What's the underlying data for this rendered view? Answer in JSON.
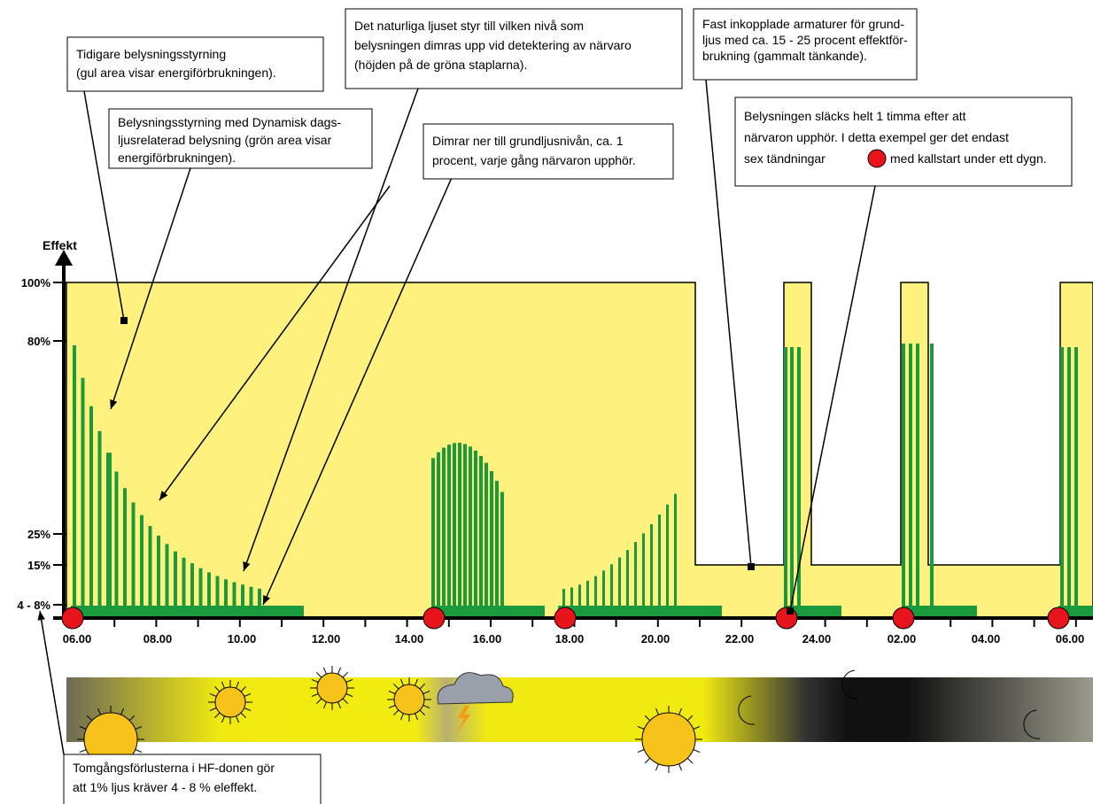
{
  "annotations": [
    {
      "lines": [
        "Tidigare belysningsstyrning",
        "(gul area visar energiförbrukningen)."
      ]
    },
    {
      "lines": [
        "Belysningsstyrning med Dynamisk dags-",
        "ljusrelaterad belysning (grön area visar",
        "energiförbrukningen)."
      ]
    },
    {
      "lines": [
        "Det naturliga ljuset styr till vilken nivå som",
        "belysningen dimras upp vid detektering av närvaro",
        "(höjden på de gröna staplarna)."
      ]
    },
    {
      "lines": [
        "Dimrar ner till grundljusnivån, ca. 1",
        "procent, varje gång närvaron upphör."
      ]
    },
    {
      "lines": [
        "Fast inkopplade armaturer för grund-",
        "ljus med ca. 15 - 25 procent  effektför-",
        "brukning (gammalt tänkande)."
      ]
    },
    {
      "lines": [
        "Belysningen släcks helt 1 timma efter att",
        "närvaron upphör. I detta exempel ger det endast",
        "sex tändningar",
        "med kallstart under ett dygn."
      ]
    },
    {
      "lines": [
        "Tomgångsförlusterna i HF-donen gör",
        "att 1% ljus kräver 4 - 8 % eleffekt."
      ]
    }
  ],
  "y_axis": {
    "label": "Effekt",
    "ticks": [
      "100%",
      "80%",
      "25%",
      "15%",
      "4 - 8%"
    ]
  },
  "x_axis": {
    "ticks": [
      "06.00",
      "08.00",
      "10.00",
      "12.00",
      "14.00",
      "16.00",
      "18.00",
      "20.00",
      "22.00",
      "24.00",
      "02.00",
      "04.00",
      "06.00"
    ]
  }
}
